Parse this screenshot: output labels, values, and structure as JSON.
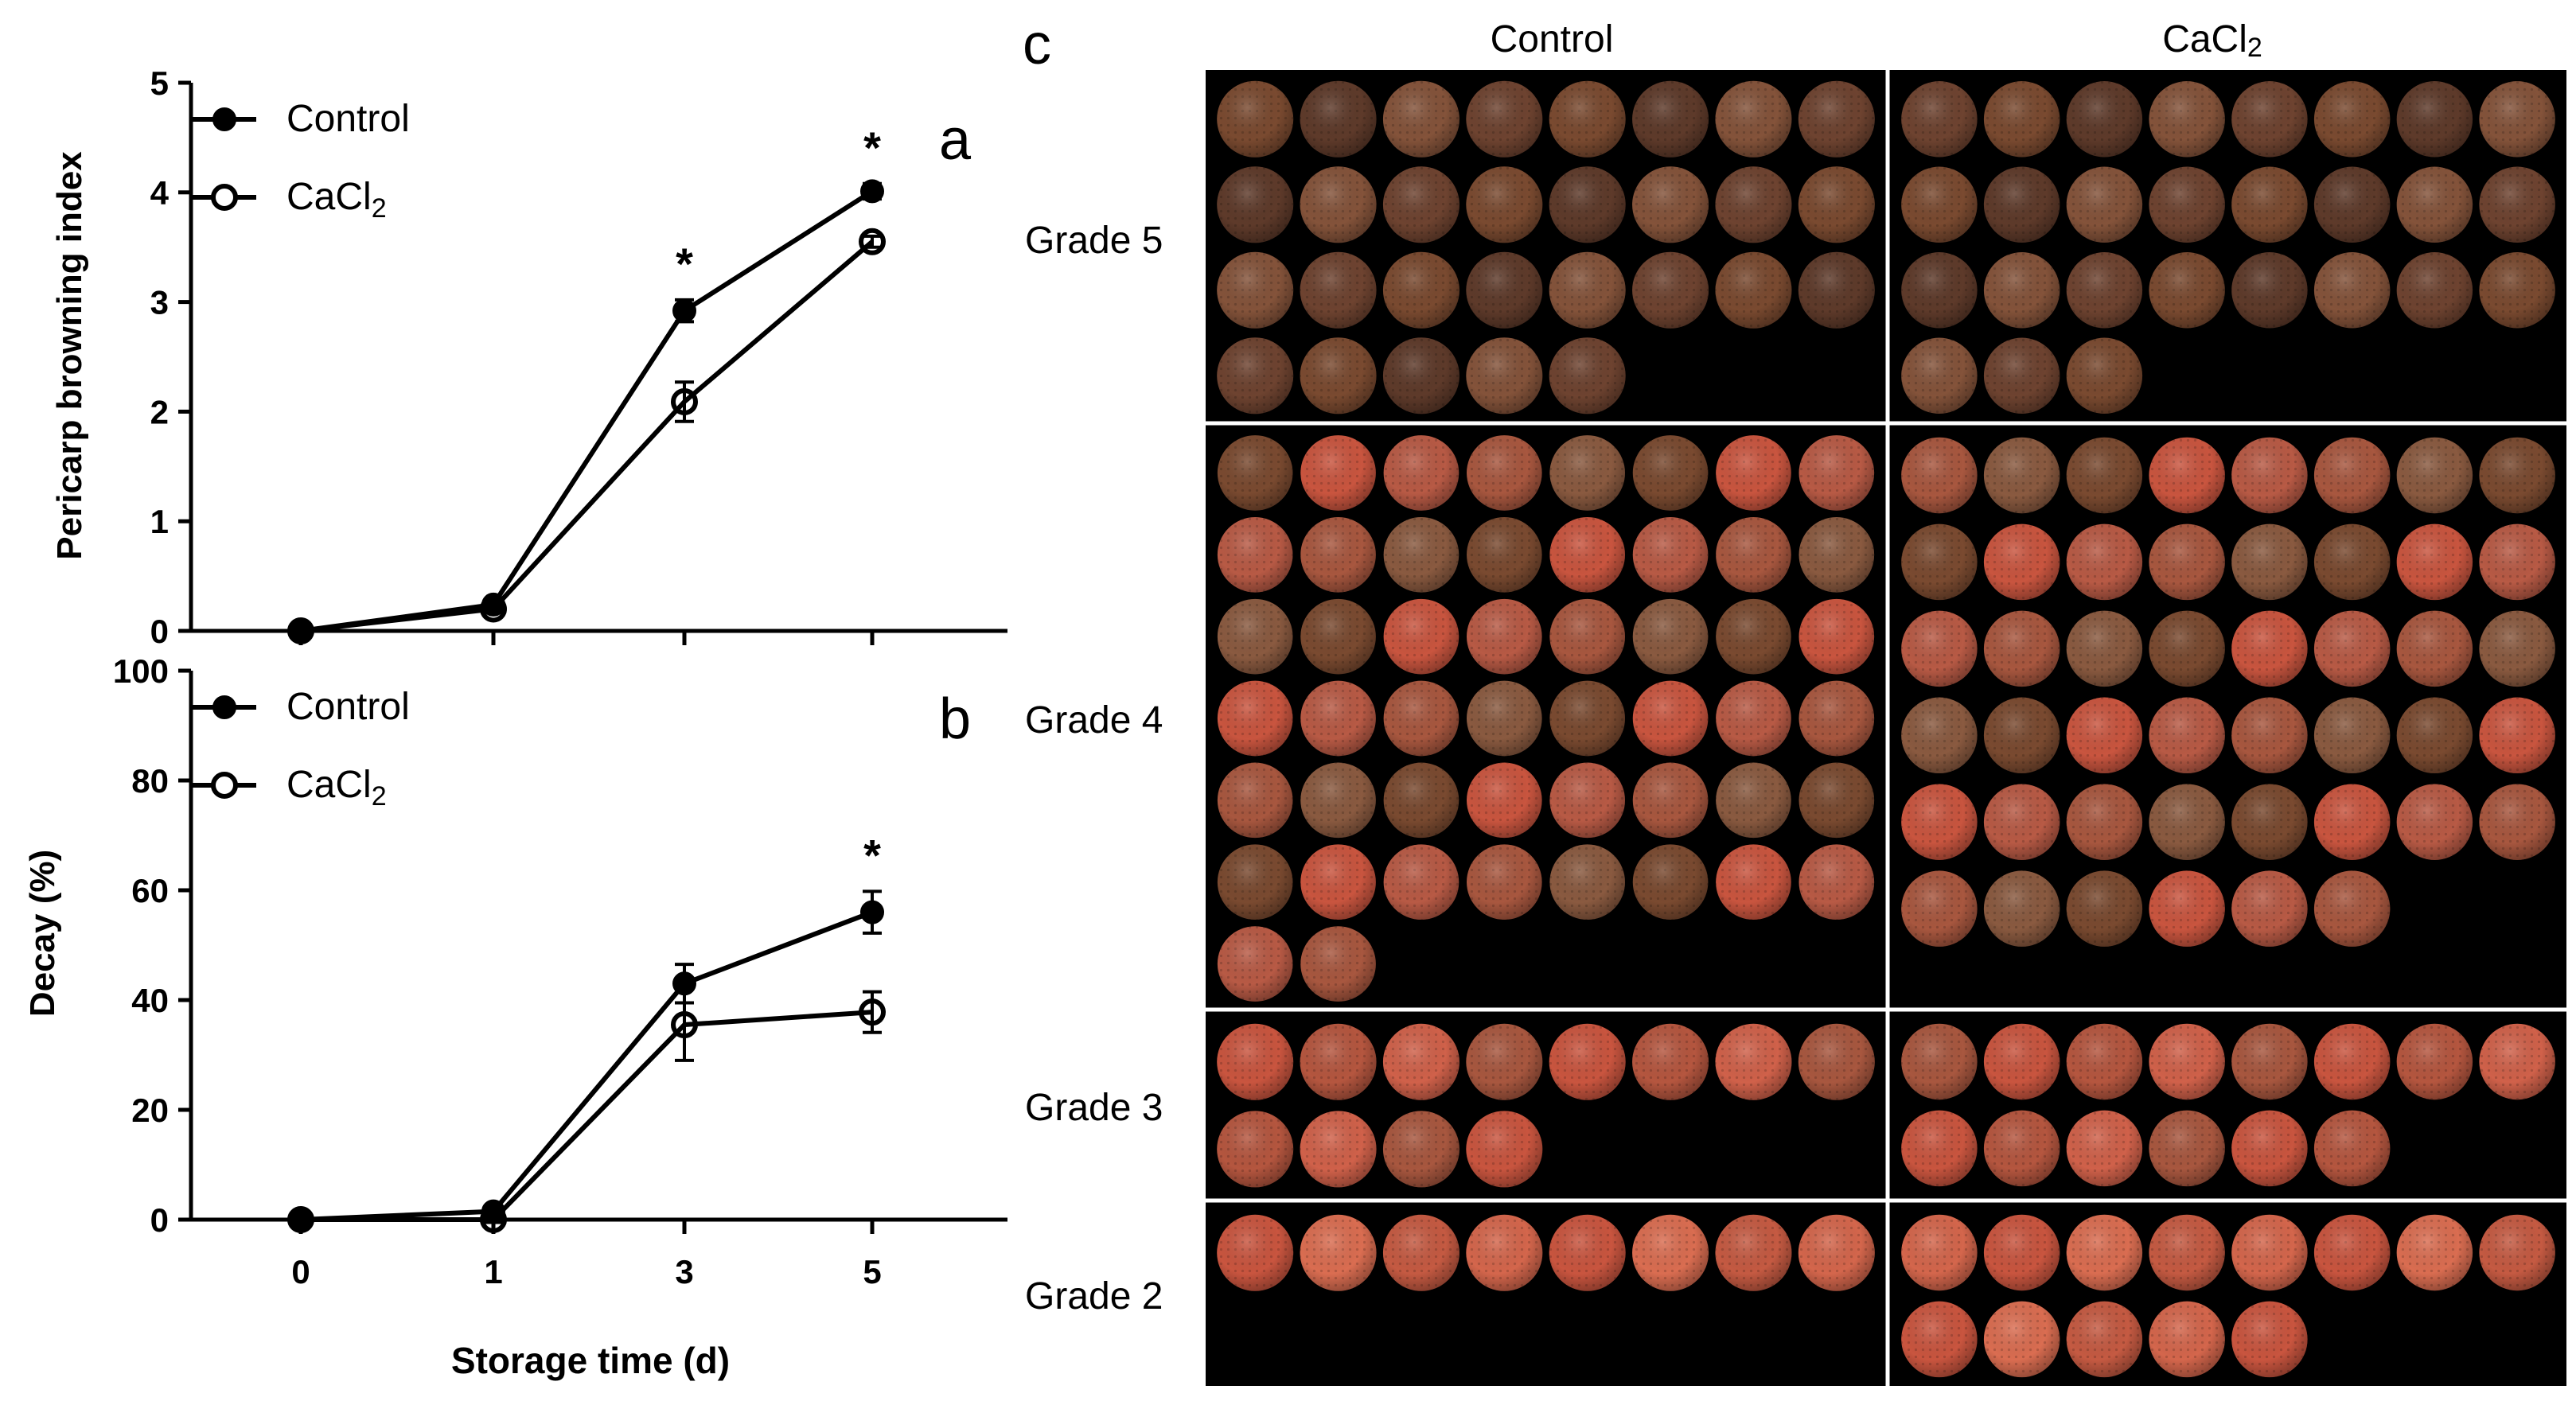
{
  "chart_data": [
    {
      "panel": "a",
      "type": "line",
      "ylabel": "Pericarp browning index",
      "xlabel": "",
      "ylim": [
        0,
        5
      ],
      "yticks": [
        "0",
        "1",
        "2",
        "3",
        "4",
        "5"
      ],
      "xticks": [
        "0",
        "1",
        "3",
        "5"
      ],
      "x": [
        0,
        1,
        3,
        5
      ],
      "series": [
        {
          "name": "Control",
          "marker": "filled",
          "values": [
            0,
            0.24,
            2.92,
            4.01
          ],
          "errors": [
            0.03,
            0.03,
            0.1,
            0.07
          ]
        },
        {
          "name": "CaCl",
          "name_sub": "2",
          "marker": "open",
          "values": [
            0,
            0.2,
            2.09,
            3.55
          ],
          "errors": [
            0.03,
            0.03,
            0.18,
            0.05
          ]
        }
      ],
      "annotations": [
        {
          "x": 3,
          "text": "*"
        },
        {
          "x": 5,
          "text": "*"
        }
      ]
    },
    {
      "panel": "b",
      "type": "line",
      "ylabel": "Decay (%)",
      "xlabel": "Storage time (d)",
      "ylim": [
        0,
        100
      ],
      "yticks": [
        "0",
        "20",
        "40",
        "60",
        "80",
        "100"
      ],
      "xticks": [
        "0",
        "1",
        "3",
        "5"
      ],
      "x": [
        0,
        1,
        3,
        5
      ],
      "series": [
        {
          "name": "Control",
          "marker": "filled",
          "values": [
            0,
            1.5,
            43,
            56
          ],
          "errors": [
            0.5,
            0.5,
            3.5,
            3.8
          ]
        },
        {
          "name": "CaCl",
          "name_sub": "2",
          "marker": "open",
          "values": [
            0,
            0,
            35.5,
            37.8
          ],
          "errors": [
            0.5,
            0.5,
            6.5,
            3.7
          ]
        }
      ],
      "annotations": [
        {
          "x": 5,
          "text": "*"
        }
      ]
    }
  ],
  "photo_panel": {
    "label": "c",
    "columns": [
      {
        "title": "Control"
      },
      {
        "title": "CaCl",
        "title_sub": "2"
      }
    ],
    "rows": [
      {
        "grade": "Grade 5",
        "counts": [
          29,
          27
        ]
      },
      {
        "grade": "Grade 4",
        "counts": [
          50,
          46
        ]
      },
      {
        "grade": "Grade 3",
        "counts": [
          12,
          14
        ]
      },
      {
        "grade": "Grade 2",
        "counts": [
          8,
          13
        ]
      }
    ],
    "colors": {
      "background": "#000000",
      "divider": "#ffffff",
      "brown_fruit": "#7a4a30",
      "mixed_fruit": "#a8573f",
      "red_fruit": "#c9553f"
    }
  }
}
